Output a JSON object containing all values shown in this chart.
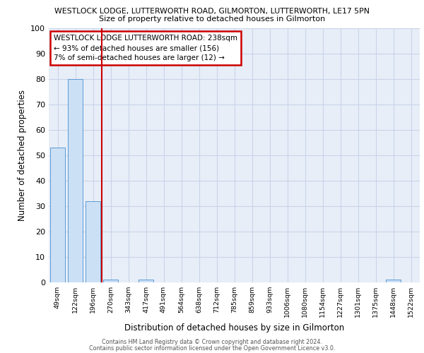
{
  "title1": "WESTLOCK LODGE, LUTTERWORTH ROAD, GILMORTON, LUTTERWORTH, LE17 5PN",
  "title2": "Size of property relative to detached houses in Gilmorton",
  "xlabel": "Distribution of detached houses by size in Gilmorton",
  "ylabel": "Number of detached properties",
  "categories": [
    "49sqm",
    "122sqm",
    "196sqm",
    "270sqm",
    "343sqm",
    "417sqm",
    "491sqm",
    "564sqm",
    "638sqm",
    "712sqm",
    "785sqm",
    "859sqm",
    "933sqm",
    "1006sqm",
    "1080sqm",
    "1154sqm",
    "1227sqm",
    "1301sqm",
    "1375sqm",
    "1448sqm",
    "1522sqm"
  ],
  "values": [
    53,
    80,
    32,
    1,
    0,
    1,
    0,
    0,
    0,
    0,
    0,
    0,
    0,
    0,
    0,
    0,
    0,
    0,
    0,
    1,
    0
  ],
  "bar_color": "#cce0f5",
  "bar_edge_color": "#5b9bd5",
  "grid_color": "#c8d4e8",
  "bg_color": "#e8eef8",
  "vline_color": "#cc0000",
  "vline_x": 2.5,
  "annotation_text": "WESTLOCK LODGE LUTTERWORTH ROAD: 238sqm\n← 93% of detached houses are smaller (156)\n7% of semi-detached houses are larger (12) →",
  "annotation_box_color": "#ffffff",
  "annotation_box_edge": "#cc0000",
  "ylim": [
    0,
    100
  ],
  "yticks": [
    0,
    10,
    20,
    30,
    40,
    50,
    60,
    70,
    80,
    90,
    100
  ],
  "footer1": "Contains HM Land Registry data © Crown copyright and database right 2024.",
  "footer2": "Contains public sector information licensed under the Open Government Licence v3.0."
}
